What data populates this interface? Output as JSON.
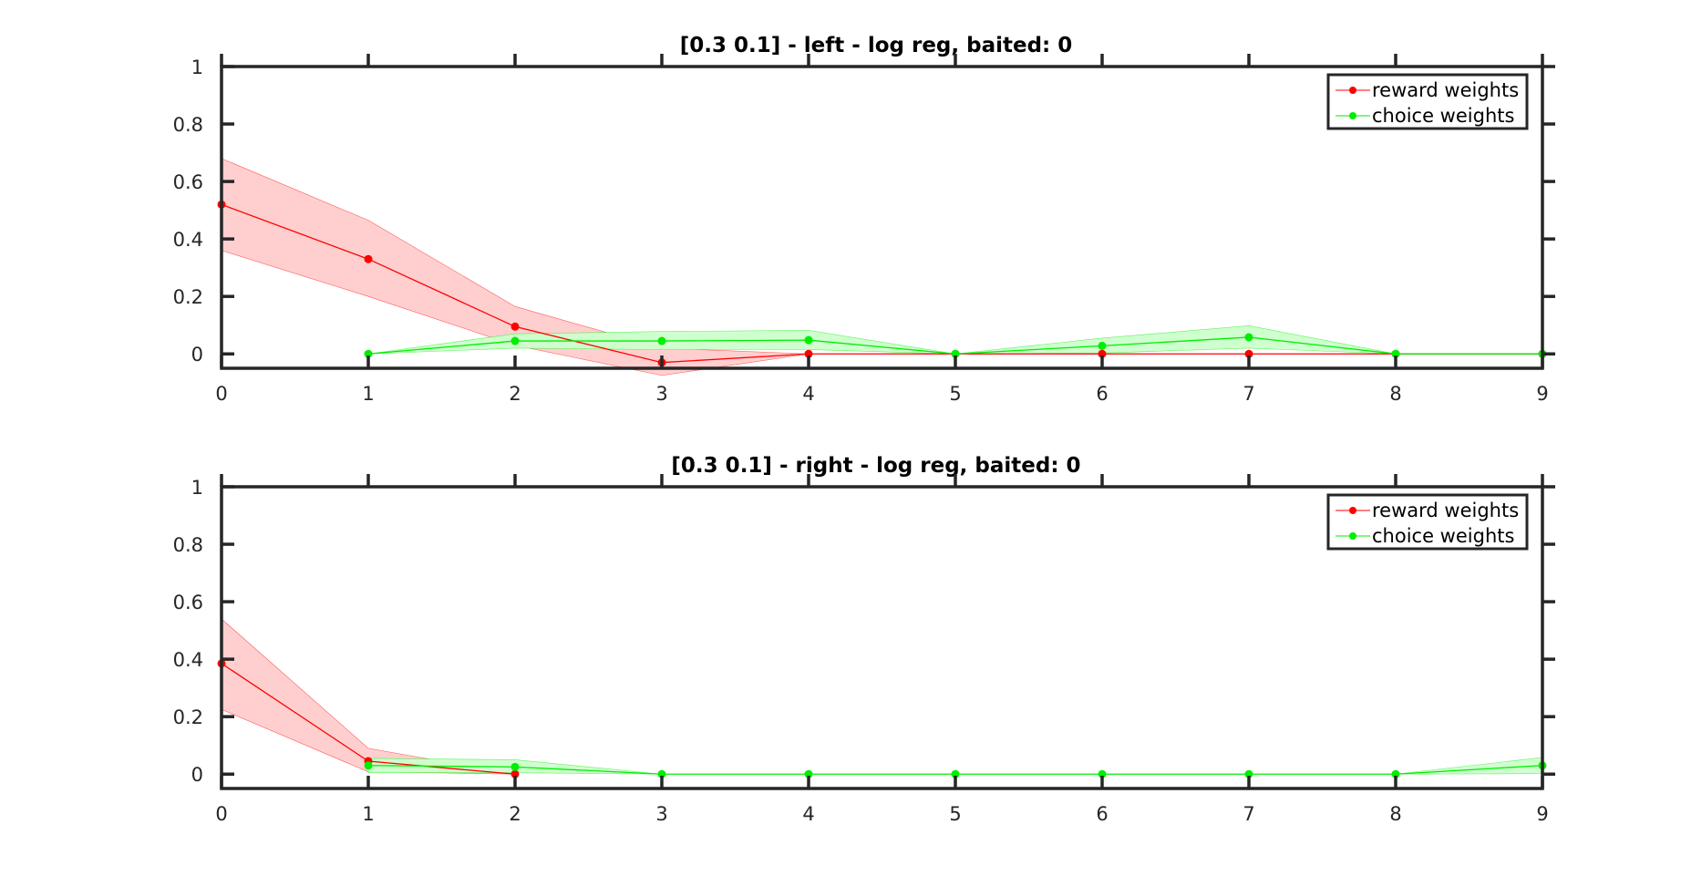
{
  "chart_data": [
    {
      "type": "line",
      "title": "[0.3 0.1] - left - log reg, baited: 0",
      "xlabel": "",
      "ylabel": "",
      "xlim": [
        0,
        9
      ],
      "ylim": [
        -0.05,
        1
      ],
      "xticks": [
        0,
        1,
        2,
        3,
        4,
        5,
        6,
        7,
        8,
        9
      ],
      "yticks": [
        0,
        0.2,
        0.4,
        0.6,
        0.8,
        1
      ],
      "ytick_labels": [
        "0",
        "0.2",
        "0.4",
        "0.6",
        "0.8",
        "1"
      ],
      "legend_position": "top-right",
      "series": [
        {
          "name": "reward weights",
          "color": "#ff0000",
          "band_color": "#ffcccc",
          "x": [
            0,
            1,
            2,
            3,
            4,
            5,
            6,
            7,
            8,
            9
          ],
          "y": [
            0.52,
            0.33,
            0.095,
            -0.03,
            0,
            0,
            0,
            0,
            0,
            0
          ],
          "upper": [
            0.68,
            0.465,
            0.165,
            0.02,
            0,
            0,
            0,
            0,
            0,
            0
          ],
          "lower": [
            0.36,
            0.2,
            0.03,
            -0.075,
            0,
            0,
            0,
            0,
            0,
            0
          ]
        },
        {
          "name": "choice weights",
          "color": "#00ee00",
          "band_color": "#ccffcc",
          "x": [
            1,
            2,
            3,
            4,
            5,
            6,
            7,
            8,
            9
          ],
          "y": [
            0,
            0.045,
            0.045,
            0.048,
            0,
            0.028,
            0.058,
            0,
            0
          ],
          "upper": [
            0,
            0.07,
            0.078,
            0.082,
            0,
            0.055,
            0.098,
            0,
            0
          ],
          "lower": [
            0,
            0.02,
            0.015,
            0.015,
            0,
            0.003,
            0.02,
            0,
            0
          ]
        }
      ]
    },
    {
      "type": "line",
      "title": "[0.3 0.1] - right - log reg, baited: 0",
      "xlabel": "",
      "ylabel": "",
      "xlim": [
        0,
        9
      ],
      "ylim": [
        -0.05,
        1
      ],
      "xticks": [
        0,
        1,
        2,
        3,
        4,
        5,
        6,
        7,
        8,
        9
      ],
      "yticks": [
        0,
        0.2,
        0.4,
        0.6,
        0.8,
        1
      ],
      "ytick_labels": [
        "0",
        "0.2",
        "0.4",
        "0.6",
        "0.8",
        "1"
      ],
      "legend_position": "top-right",
      "series": [
        {
          "name": "reward weights",
          "color": "#ff0000",
          "band_color": "#ffcccc",
          "x": [
            0,
            1,
            2
          ],
          "y": [
            0.385,
            0.045,
            0
          ],
          "upper": [
            0.54,
            0.09,
            0
          ],
          "lower": [
            0.225,
            0.008,
            0
          ]
        },
        {
          "name": "choice weights",
          "color": "#00ee00",
          "band_color": "#ccffcc",
          "x": [
            1,
            2,
            3,
            4,
            5,
            6,
            7,
            8,
            9
          ],
          "y": [
            0.03,
            0.025,
            0,
            0,
            0,
            0,
            0,
            0,
            0.03
          ],
          "upper": [
            0.055,
            0.05,
            0,
            0,
            0,
            0,
            0,
            0,
            0.058
          ],
          "lower": [
            0.005,
            0.005,
            0,
            0,
            0,
            0,
            0,
            0,
            0.002
          ]
        }
      ]
    }
  ]
}
